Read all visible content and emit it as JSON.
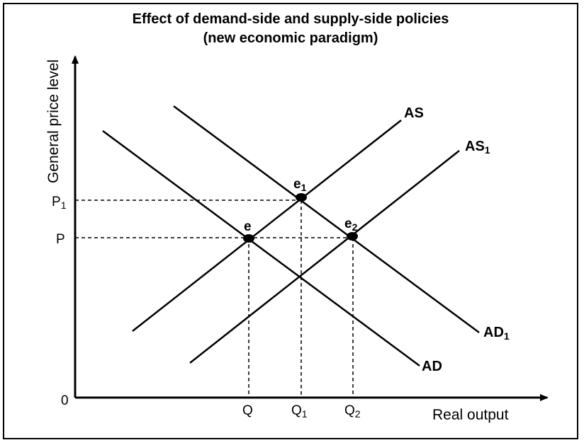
{
  "title": {
    "line1": "Effect of demand-side and supply-side policies",
    "line2": "(new economic paradigm)"
  },
  "axes": {
    "y_label": "General price level",
    "x_label": "Real output",
    "origin": "0"
  },
  "ticks": {
    "P1": {
      "base": "P",
      "sub": "1"
    },
    "P": {
      "base": "P",
      "sub": ""
    },
    "Q": {
      "base": "Q",
      "sub": ""
    },
    "Q1": {
      "base": "Q",
      "sub": "1"
    },
    "Q2": {
      "base": "Q",
      "sub": "2"
    }
  },
  "curves": {
    "AS": {
      "base": "AS",
      "sub": ""
    },
    "AS1": {
      "base": "AS",
      "sub": "1"
    },
    "AD": {
      "base": "AD",
      "sub": ""
    },
    "AD1": {
      "base": "AD",
      "sub": "1"
    }
  },
  "points": {
    "e": {
      "base": "e",
      "sub": ""
    },
    "e1": {
      "base": "e",
      "sub": "1"
    },
    "e2": {
      "base": "e",
      "sub": "2"
    }
  },
  "colors": {
    "line": "#000000",
    "background": "#ffffff"
  }
}
